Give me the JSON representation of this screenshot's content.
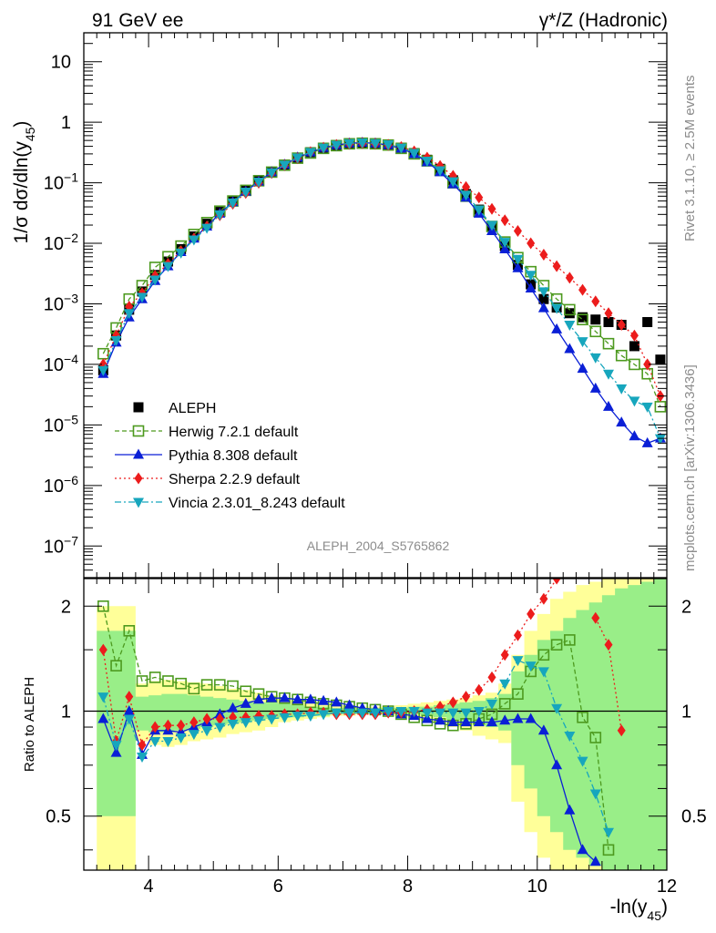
{
  "header": {
    "left": "91 GeV ee",
    "right": "γ*/Z (Hadronic)"
  },
  "side_text": {
    "rivet": "Rivet 3.1.10, ≥ 2.5M events",
    "mcplots": "mcplots.cern.ch [arXiv:1306.3436]"
  },
  "analysis_id": "ALEPH_2004_S5765862",
  "colors": {
    "data": "#000000",
    "herwig": "#4d9a1f",
    "pythia": "#0a1fd6",
    "sherpa": "#ec1c1c",
    "vincia": "#17a6bd",
    "band_yellow": "#ffff99",
    "band_green": "#99ee88"
  },
  "chart_data": [
    {
      "type": "line",
      "panel": "main",
      "title": "",
      "ylabel": "1/σ dσ/dln(y45)",
      "xlabel": "",
      "xlim": [
        3,
        12
      ],
      "ylim": [
        3e-08,
        30
      ],
      "yscale": "log",
      "x_ticks": [
        4,
        6,
        8,
        10,
        12
      ],
      "y_tick_labels": [
        "10",
        "1",
        "10-1",
        "10-2",
        "10-3",
        "10-4",
        "10-5",
        "10-6",
        "10-7"
      ],
      "legend_position": "lower-left",
      "x": [
        3.3,
        3.5,
        3.7,
        3.9,
        4.1,
        4.3,
        4.5,
        4.7,
        4.9,
        5.1,
        5.3,
        5.5,
        5.7,
        5.9,
        6.1,
        6.3,
        6.5,
        6.7,
        6.9,
        7.1,
        7.3,
        7.5,
        7.7,
        7.9,
        8.1,
        8.3,
        8.5,
        8.7,
        8.9,
        9.1,
        9.3,
        9.5,
        9.7,
        9.9,
        10.1,
        10.3,
        10.5,
        10.7,
        10.9,
        11.1,
        11.3,
        11.5,
        11.7,
        11.9
      ],
      "series": [
        {
          "name": "ALEPH",
          "marker": "square-filled",
          "values": [
            8e-05,
            0.0003,
            0.0008,
            0.0016,
            0.003,
            0.005,
            0.008,
            0.013,
            0.021,
            0.033,
            0.05,
            0.075,
            0.11,
            0.15,
            0.2,
            0.26,
            0.32,
            0.38,
            0.42,
            0.45,
            0.46,
            0.45,
            0.43,
            0.38,
            0.31,
            0.24,
            0.17,
            0.11,
            0.065,
            0.036,
            0.019,
            0.009,
            0.0044,
            0.0021,
            0.0012,
            0.00087,
            0.0007,
            0.0006,
            0.00055,
            0.0005,
            0.00045,
            0.0002,
            0.0005,
            0.00012
          ]
        },
        {
          "name": "Herwig 7.2.1 default",
          "marker": "square-open",
          "line": "dashed",
          "values": [
            0.00015,
            0.0004,
            0.0012,
            0.002,
            0.004,
            0.006,
            0.009,
            0.014,
            0.022,
            0.034,
            0.05,
            0.075,
            0.108,
            0.15,
            0.195,
            0.255,
            0.31,
            0.37,
            0.41,
            0.44,
            0.45,
            0.44,
            0.42,
            0.37,
            0.3,
            0.23,
            0.16,
            0.1,
            0.06,
            0.034,
            0.019,
            0.0105,
            0.0058,
            0.0034,
            0.002,
            0.0012,
            0.0008,
            0.00055,
            0.00035,
            0.00022,
            0.00014,
            0.0001,
            7e-05,
            2e-05
          ]
        },
        {
          "name": "Pythia 8.308 default",
          "marker": "triangle-up",
          "line": "solid",
          "values": [
            7e-05,
            0.00023,
            0.0006,
            0.0012,
            0.0024,
            0.0042,
            0.0072,
            0.012,
            0.019,
            0.031,
            0.048,
            0.072,
            0.105,
            0.15,
            0.2,
            0.262,
            0.32,
            0.38,
            0.42,
            0.45,
            0.46,
            0.45,
            0.42,
            0.37,
            0.3,
            0.22,
            0.15,
            0.095,
            0.057,
            0.031,
            0.016,
            0.008,
            0.0039,
            0.0018,
            0.00085,
            0.00038,
            0.00018,
            8.5e-05,
            4e-05,
            2e-05,
            1.1e-05,
            6.5e-06,
            5e-06,
            6e-06
          ]
        },
        {
          "name": "Sherpa 2.2.9 default",
          "marker": "diamond",
          "line": "dotted",
          "values": [
            0.0001,
            0.0003,
            0.0009,
            0.0015,
            0.0029,
            0.0046,
            0.0074,
            0.012,
            0.019,
            0.029,
            0.045,
            0.068,
            0.1,
            0.145,
            0.195,
            0.255,
            0.32,
            0.38,
            0.42,
            0.44,
            0.45,
            0.44,
            0.42,
            0.39,
            0.33,
            0.26,
            0.19,
            0.13,
            0.085,
            0.057,
            0.037,
            0.024,
            0.016,
            0.01,
            0.0065,
            0.0042,
            0.0027,
            0.0017,
            0.0011,
            0.0007,
            0.00045,
            0.0003,
            0.0001,
            3e-05
          ]
        },
        {
          "name": "Vincia 2.3.01_8.243 default",
          "marker": "triangle-down",
          "line": "dashdot",
          "values": [
            8e-05,
            0.00025,
            0.0007,
            0.0013,
            0.0025,
            0.0042,
            0.007,
            0.0115,
            0.018,
            0.03,
            0.047,
            0.071,
            0.104,
            0.148,
            0.198,
            0.26,
            0.32,
            0.38,
            0.42,
            0.45,
            0.46,
            0.45,
            0.43,
            0.38,
            0.31,
            0.23,
            0.16,
            0.105,
            0.063,
            0.036,
            0.02,
            0.0105,
            0.0055,
            0.003,
            0.0016,
            0.00085,
            0.00045,
            0.00024,
            0.00013,
            7e-05,
            4e-05,
            2.5e-05,
            2e-05,
            6e-06
          ]
        }
      ]
    },
    {
      "type": "line",
      "panel": "ratio",
      "title": "",
      "ylabel": "Ratio to ALEPH",
      "xlabel": "-ln(y45)",
      "xlim": [
        3,
        12
      ],
      "ylim": [
        0.35,
        2.4
      ],
      "yscale": "log",
      "y_ticks": [
        0.5,
        1,
        2
      ],
      "y_tick_labels": [
        "0.5",
        "1",
        "2"
      ],
      "x_tick_labels": [
        "4",
        "6",
        "8",
        "10",
        "12"
      ],
      "x": [
        3.3,
        3.5,
        3.7,
        3.9,
        4.1,
        4.3,
        4.5,
        4.7,
        4.9,
        5.1,
        5.3,
        5.5,
        5.7,
        5.9,
        6.1,
        6.3,
        6.5,
        6.7,
        6.9,
        7.1,
        7.3,
        7.5,
        7.7,
        7.9,
        8.1,
        8.3,
        8.5,
        8.7,
        8.9,
        9.1,
        9.3,
        9.5,
        9.7,
        9.9,
        10.1,
        10.3,
        10.5,
        10.7,
        10.9,
        11.1,
        11.3,
        11.5,
        11.7,
        11.9
      ],
      "bands": {
        "x_edges": [
          3.2,
          3.8,
          4.0,
          4.2,
          4.4,
          4.6,
          4.8,
          5.0,
          5.2,
          5.4,
          5.6,
          5.8,
          6.0,
          6.2,
          6.4,
          6.6,
          6.8,
          7.0,
          7.2,
          7.4,
          7.6,
          7.8,
          8.0,
          8.2,
          8.4,
          8.6,
          8.8,
          9.0,
          9.2,
          9.4,
          9.6,
          9.8,
          10.0,
          10.2,
          10.4,
          10.6,
          10.8,
          11.0,
          11.2,
          11.4,
          11.6,
          11.8,
          12.0
        ],
        "yellow_lo": [
          0.35,
          0.82,
          0.8,
          0.79,
          0.8,
          0.82,
          0.83,
          0.84,
          0.86,
          0.87,
          0.88,
          0.9,
          0.93,
          0.94,
          0.95,
          0.96,
          0.97,
          0.97,
          0.98,
          0.98,
          0.98,
          0.97,
          0.96,
          0.94,
          0.93,
          0.9,
          0.88,
          0.85,
          0.83,
          0.81,
          0.55,
          0.45,
          0.38,
          0.35,
          0.35,
          0.35,
          0.35,
          0.35,
          0.35,
          0.35,
          0.35,
          0.35
        ],
        "yellow_hi": [
          2.0,
          1.2,
          1.22,
          1.23,
          1.22,
          1.21,
          1.2,
          1.18,
          1.16,
          1.15,
          1.13,
          1.11,
          1.09,
          1.07,
          1.06,
          1.05,
          1.04,
          1.03,
          1.03,
          1.03,
          1.03,
          1.04,
          1.05,
          1.06,
          1.07,
          1.08,
          1.09,
          1.11,
          1.13,
          1.2,
          1.45,
          1.7,
          1.9,
          2.1,
          2.2,
          2.3,
          2.35,
          2.4,
          2.4,
          2.4,
          2.4,
          2.4
        ],
        "green_lo": [
          0.5,
          0.88,
          0.87,
          0.87,
          0.88,
          0.89,
          0.9,
          0.91,
          0.92,
          0.93,
          0.94,
          0.95,
          0.96,
          0.96,
          0.97,
          0.97,
          0.98,
          0.98,
          0.99,
          0.99,
          0.99,
          0.98,
          0.98,
          0.97,
          0.96,
          0.94,
          0.93,
          0.91,
          0.9,
          0.88,
          0.7,
          0.6,
          0.5,
          0.45,
          0.4,
          0.38,
          0.36,
          0.35,
          0.35,
          0.35,
          0.35,
          0.35
        ],
        "green_hi": [
          1.7,
          1.1,
          1.11,
          1.12,
          1.12,
          1.11,
          1.1,
          1.09,
          1.08,
          1.07,
          1.06,
          1.06,
          1.05,
          1.04,
          1.03,
          1.03,
          1.02,
          1.02,
          1.02,
          1.02,
          1.02,
          1.02,
          1.03,
          1.03,
          1.04,
          1.05,
          1.06,
          1.07,
          1.09,
          1.12,
          1.3,
          1.45,
          1.6,
          1.7,
          1.85,
          1.95,
          2.05,
          2.15,
          2.25,
          2.3,
          2.35,
          2.4
        ]
      },
      "series": [
        {
          "name": "Herwig 7.2.1 default",
          "values": [
            2.0,
            1.35,
            1.7,
            1.22,
            1.25,
            1.22,
            1.2,
            1.16,
            1.19,
            1.19,
            1.18,
            1.14,
            1.12,
            1.1,
            1.09,
            1.08,
            1.06,
            1.05,
            1.04,
            1.03,
            1.02,
            1.01,
            1.0,
            0.98,
            0.96,
            0.94,
            0.92,
            0.91,
            0.92,
            0.95,
            0.98,
            1.05,
            1.12,
            1.3,
            1.45,
            1.55,
            1.6,
            0.96,
            0.84,
            0.4,
            null,
            null,
            null,
            null
          ]
        },
        {
          "name": "Pythia 8.308 default",
          "values": [
            0.95,
            0.76,
            1.0,
            0.75,
            0.88,
            0.88,
            0.87,
            0.9,
            0.93,
            0.98,
            1.02,
            1.05,
            1.08,
            1.09,
            1.09,
            1.08,
            1.08,
            1.07,
            1.06,
            1.04,
            1.02,
            1.01,
            1.0,
            0.98,
            0.97,
            0.95,
            0.94,
            0.93,
            0.93,
            0.93,
            0.93,
            0.94,
            0.95,
            0.95,
            0.88,
            0.7,
            0.52,
            0.4,
            0.37,
            null,
            null,
            null,
            null,
            null
          ]
        },
        {
          "name": "Sherpa 2.2.9 default",
          "values": [
            1.5,
            0.82,
            1.1,
            0.8,
            0.9,
            0.91,
            0.91,
            0.93,
            0.95,
            0.95,
            0.96,
            0.96,
            0.97,
            0.97,
            0.98,
            0.98,
            0.99,
            0.99,
            0.98,
            0.98,
            0.98,
            0.98,
            0.99,
            0.99,
            1.0,
            1.01,
            1.03,
            1.06,
            1.1,
            1.15,
            1.25,
            1.45,
            1.65,
            1.9,
            2.1,
            2.4,
            null,
            null,
            1.85,
            1.55,
            0.88,
            null,
            null,
            null
          ]
        },
        {
          "name": "Vincia 2.3.01_8.243 default",
          "values": [
            1.1,
            0.8,
            0.95,
            0.74,
            0.82,
            0.82,
            0.84,
            0.86,
            0.88,
            0.9,
            0.92,
            0.93,
            0.94,
            0.95,
            0.96,
            0.97,
            0.97,
            0.98,
            0.99,
            0.99,
            0.99,
            0.99,
            1.0,
            1.0,
            1.0,
            0.99,
            0.99,
            0.99,
            0.99,
            1.0,
            1.05,
            1.2,
            1.4,
            1.35,
            1.3,
            1.02,
            0.85,
            0.72,
            0.58,
            0.45,
            null,
            null,
            null,
            null
          ]
        }
      ]
    }
  ]
}
